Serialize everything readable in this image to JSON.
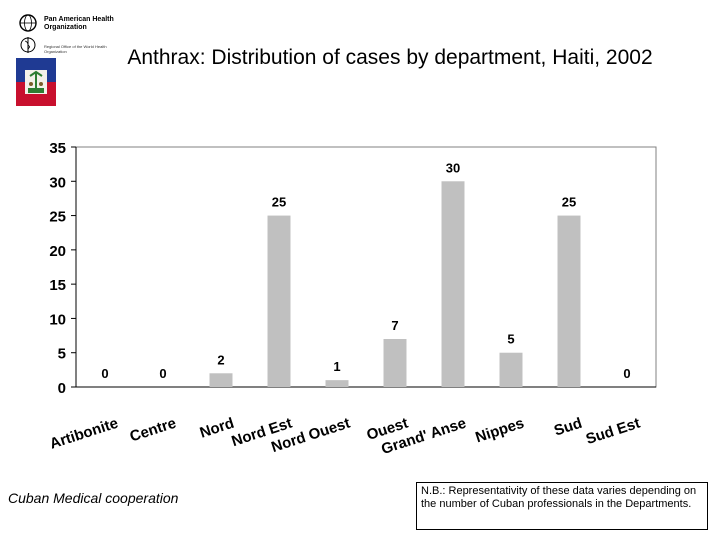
{
  "header": {
    "logo_text": "Pan American Health Organization",
    "logo_subtext": "Regional Office of the World Health Organization"
  },
  "chart_data": {
    "type": "bar",
    "title": "Anthrax: Distribution of cases by department, Haiti, 2002",
    "xlabel": "",
    "ylabel": "",
    "categories": [
      "Artibonite",
      "Centre",
      "Nord",
      "Nord Est",
      "Nord Ouest",
      "Ouest",
      "Grand' Anse",
      "Nippes",
      "Sud",
      "Sud Est"
    ],
    "category_lines": [
      [
        "Artibonite"
      ],
      [
        "Centre"
      ],
      [
        "Nord"
      ],
      [
        "Nord Est"
      ],
      [
        "Nord Ouest"
      ],
      [
        "Ouest"
      ],
      [
        "Grand' Anse"
      ],
      [
        "Nippes"
      ],
      [
        "Sud"
      ],
      [
        "Sud Est"
      ]
    ],
    "values": [
      0,
      0,
      2,
      25,
      1,
      7,
      30,
      5,
      25,
      0
    ],
    "ylim": [
      0,
      35
    ],
    "yticks": [
      0,
      5,
      10,
      15,
      20,
      25,
      30,
      35
    ],
    "grid": false,
    "legend": "none",
    "bar_color": "#c0c0c0",
    "data_labels": true
  },
  "footer": {
    "credit": "Cuban Medical cooperation",
    "note": "N.B.: Representativity of these data varies depending on the number of Cuban professionals in the Departments."
  }
}
